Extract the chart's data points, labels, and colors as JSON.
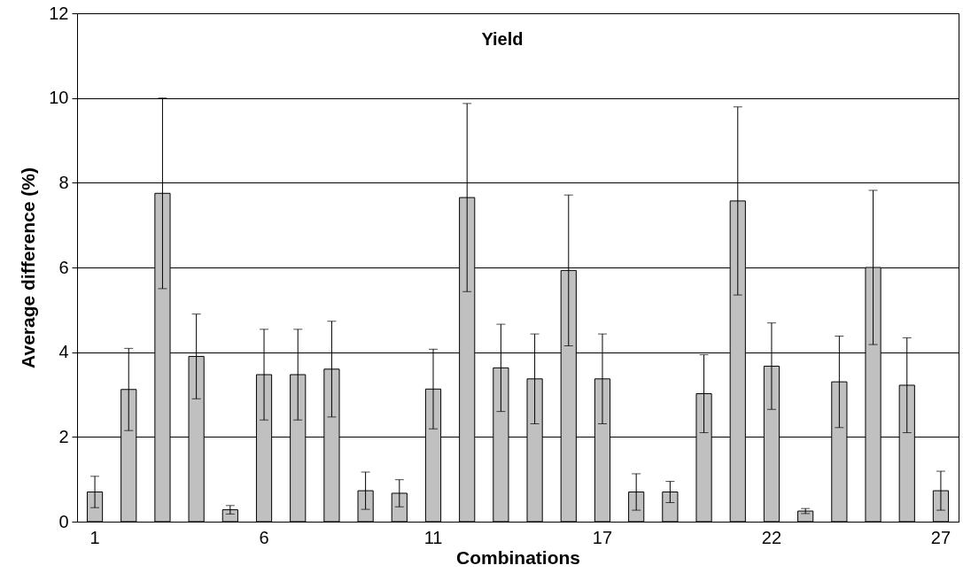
{
  "chart_data": {
    "type": "bar",
    "xlabel": "Combinations",
    "ylabel": "Average difference (%)",
    "annotations": [
      "Yield"
    ],
    "categories": [
      "1",
      null,
      null,
      null,
      null,
      "6",
      null,
      null,
      null,
      null,
      "11",
      null,
      null,
      null,
      null,
      "17",
      null,
      null,
      null,
      null,
      "22",
      null,
      null,
      null,
      null,
      "27"
    ],
    "values": [
      0.7,
      3.12,
      7.75,
      3.9,
      0.28,
      3.47,
      3.47,
      3.6,
      0.73,
      0.67,
      3.13,
      7.65,
      3.63,
      3.37,
      5.93,
      3.37,
      0.7,
      0.7,
      3.02,
      7.57,
      3.67,
      0.25,
      3.3,
      6.0,
      3.22,
      0.73
    ],
    "errors": [
      0.37,
      0.97,
      2.25,
      1.0,
      0.1,
      1.07,
      1.07,
      1.13,
      0.44,
      0.32,
      0.94,
      2.22,
      1.03,
      1.06,
      1.78,
      1.06,
      0.43,
      0.25,
      0.92,
      2.22,
      1.02,
      0.06,
      1.08,
      1.82,
      1.12,
      0.46
    ],
    "color": "#c0c0c0",
    "ylim": [
      0,
      12
    ],
    "yticks": [
      0,
      2,
      4,
      6,
      8,
      10,
      12
    ],
    "grid": "y"
  }
}
